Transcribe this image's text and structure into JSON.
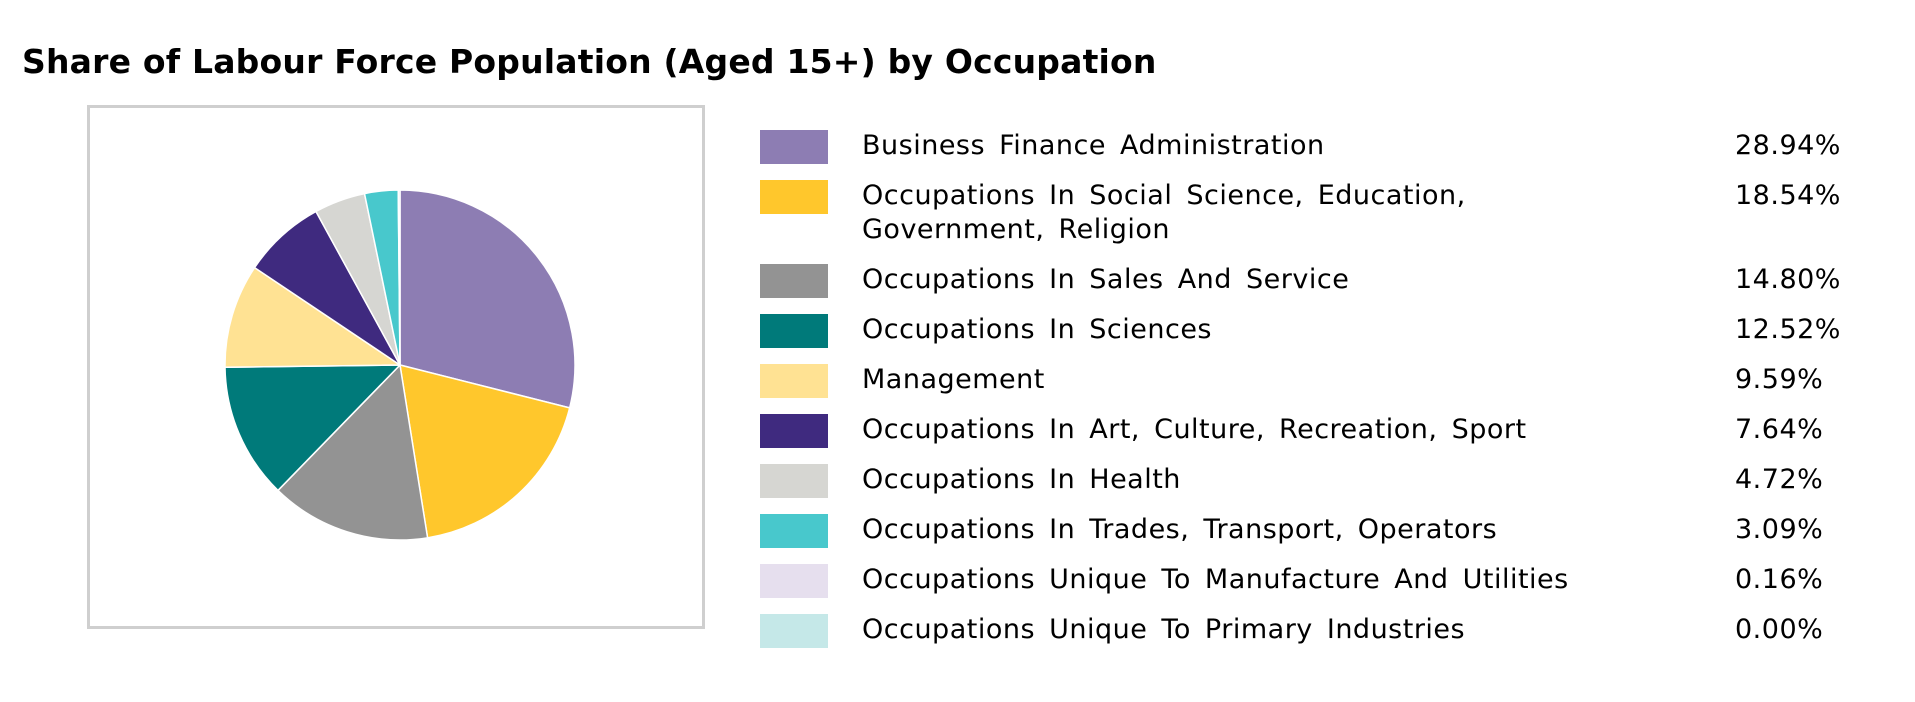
{
  "chart_data": {
    "type": "pie",
    "title": "Share of Labour Force Population (Aged 15+) by Occupation",
    "legend_position": "right",
    "slices": [
      {
        "label": "Business Finance Administration",
        "value": 28.94,
        "display": "28.94%",
        "color": "#8d7db3"
      },
      {
        "label": "Occupations In Social Science, Education, Government, Religion",
        "value": 18.54,
        "display": "18.54%",
        "color": "#ffc72c"
      },
      {
        "label": "Occupations In Sales And Service",
        "value": 14.8,
        "display": "14.80%",
        "color": "#939393"
      },
      {
        "label": "Occupations In Sciences",
        "value": 12.52,
        "display": "12.52%",
        "color": "#007a7a"
      },
      {
        "label": "Management",
        "value": 9.59,
        "display": "9.59%",
        "color": "#ffe293"
      },
      {
        "label": "Occupations In Art, Culture, Recreation, Sport",
        "value": 7.64,
        "display": "7.64%",
        "color": "#3f2a7f"
      },
      {
        "label": "Occupations In Health",
        "value": 4.72,
        "display": "4.72%",
        "color": "#d6d6d2"
      },
      {
        "label": "Occupations In Trades, Transport, Operators",
        "value": 3.09,
        "display": "3.09%",
        "color": "#48c8cc"
      },
      {
        "label": "Occupations Unique To Manufacture And Utilities",
        "value": 0.16,
        "display": "0.16%",
        "color": "#e6dfee"
      },
      {
        "label": "Occupations Unique To Primary Industries",
        "value": 0.0,
        "display": "0.00%",
        "color": "#c5e8e8"
      }
    ]
  }
}
